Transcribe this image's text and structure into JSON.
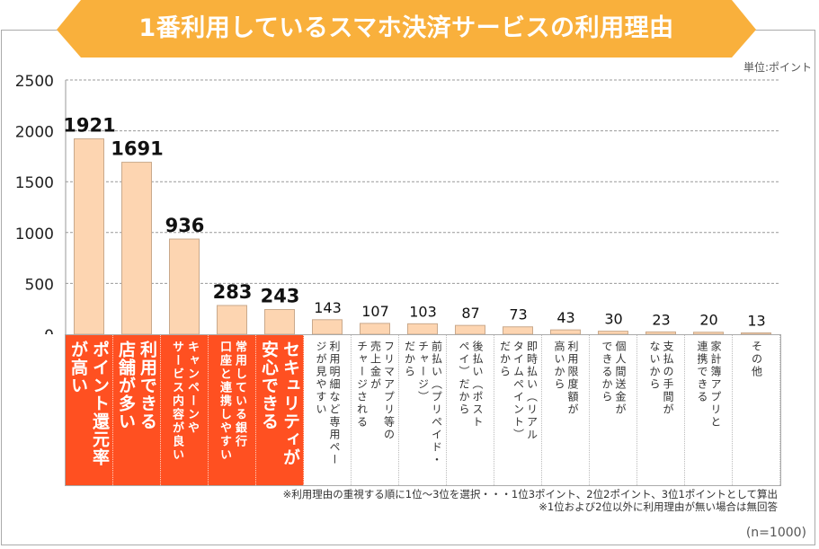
{
  "title": "1番利用しているスマホ決済サービスの利用理由",
  "unit_label": "単位:ポイント",
  "notes": [
    "※利用理由の重視する順に1位～3位を選択・・・1位3ポイント、2位2ポイント、3位1ポイントとして算出",
    "※1位および2位以外に利用理由が無い場合は無回答"
  ],
  "sample_size": "(n=1000)",
  "colors": {
    "banner": "#f9b03c",
    "bar": "#fdd5b1",
    "bar_border": "#c9a98c",
    "highlight": "#ff5021"
  },
  "chart_data": {
    "type": "bar",
    "ylim": [
      0,
      2500
    ],
    "yticks": [
      0,
      500,
      1000,
      1500,
      2000,
      2500
    ],
    "grid": true,
    "categories": [
      "ポイント還元率\nが高い",
      "利用できる\n店舗が多い",
      "キャンペーンや\nサービス内容が良い",
      "常用している銀行\n口座と連携しやすい",
      "セキュリティが\n安心できる",
      "利用明細など専用ペー\nジが見やすい",
      "フリマアプリ等の\n売上金が\nチャージされる",
      "前払い（プリペイド・\nチャージ）\nだから",
      "後払い（ポスト\nペイ）だから",
      "即時払い（リアル\nタイムペイント）\nだから",
      "利用限度額が\n高いから",
      "個人間送金が\nできるから",
      "支払の手間が\nないから",
      "家計簿アプリと\n連携できる",
      "その他"
    ],
    "values": [
      1921,
      1691,
      936,
      283,
      243,
      143,
      107,
      103,
      87,
      73,
      43,
      30,
      23,
      20,
      13
    ],
    "highlighted_count": 5
  }
}
